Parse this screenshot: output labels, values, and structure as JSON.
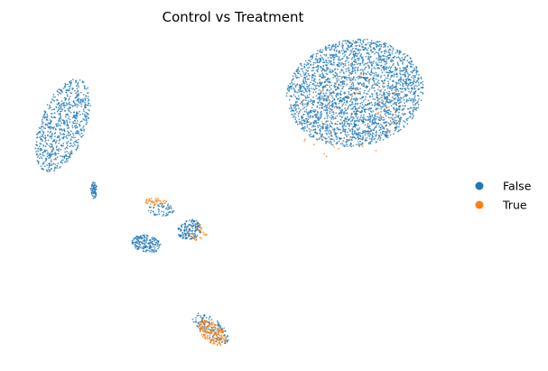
{
  "chart_data": {
    "type": "scatter",
    "title": "Control vs Treatment",
    "xlabel": "",
    "ylabel": "",
    "grid": false,
    "axes_visible": false,
    "legend_position": "right",
    "series": [
      {
        "name": "False",
        "color": "#1f77b4",
        "clusters": [
          {
            "cx": 7.75,
            "cy": 4.35,
            "rx": 2.55,
            "ry": 1.9,
            "rot": 8,
            "n": 2600
          },
          {
            "cx": -3.1,
            "cy": 3.2,
            "rx": 0.85,
            "ry": 1.75,
            "rot": -22,
            "n": 700
          },
          {
            "cx": -1.95,
            "cy": 0.9,
            "rx": 0.12,
            "ry": 0.3,
            "rot": 0,
            "n": 60
          },
          {
            "cx": 0.0,
            "cy": -1.0,
            "rx": 0.55,
            "ry": 0.3,
            "rot": -10,
            "n": 180
          },
          {
            "cx": 1.6,
            "cy": -0.5,
            "rx": 0.45,
            "ry": 0.35,
            "rot": 20,
            "n": 160
          },
          {
            "cx": 0.55,
            "cy": 0.2,
            "rx": 0.5,
            "ry": 0.25,
            "rot": 0,
            "n": 60
          },
          {
            "cx": 2.4,
            "cy": -4.0,
            "rx": 0.8,
            "ry": 0.35,
            "rot": -35,
            "n": 140
          }
        ]
      },
      {
        "name": "True",
        "color": "#ff7f0e",
        "clusters": [
          {
            "cx": 2.45,
            "cy": -4.15,
            "rx": 0.6,
            "ry": 0.35,
            "rot": -35,
            "n": 170
          },
          {
            "cx": 0.35,
            "cy": 0.5,
            "rx": 0.4,
            "ry": 0.12,
            "rot": 0,
            "n": 40
          },
          {
            "cx": 1.9,
            "cy": -0.6,
            "rx": 0.35,
            "ry": 0.3,
            "rot": 0,
            "n": 30
          },
          {
            "cx": 7.5,
            "cy": 3.5,
            "rx": 2.1,
            "ry": 1.5,
            "rot": 8,
            "n": 70
          }
        ]
      }
    ],
    "xlim": [
      -4.5,
      11
    ],
    "ylim": [
      -5,
      6.3
    ]
  }
}
